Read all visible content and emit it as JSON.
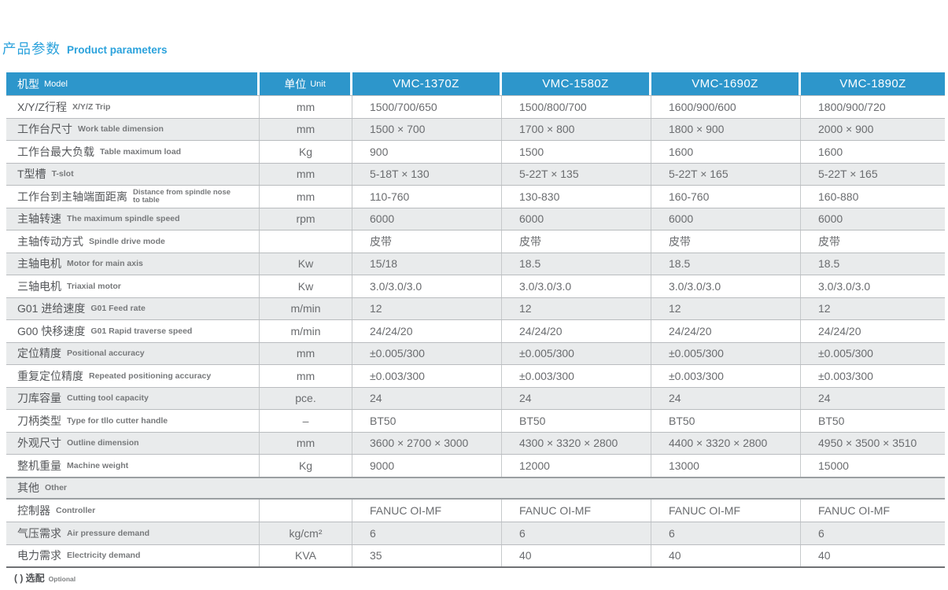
{
  "page": {
    "title_zh": "产品参数",
    "title_en": "Product parameters",
    "footnote_zh": "( ) 选配",
    "footnote_en": "Optional"
  },
  "colors": {
    "header_bg": "#2D96CB",
    "title_blue": "#2BA2DC",
    "alt_row_bg": "#E9EBEC",
    "body_text": "#6A6C6F",
    "label_text": "#55575A",
    "table_bottom_border": "#6F7174"
  },
  "table": {
    "columns": [
      {
        "zh": "机型",
        "en": "Model"
      },
      {
        "zh": "单位",
        "en": "Unit"
      },
      {
        "label": "VMC-1370Z"
      },
      {
        "label": "VMC-1580Z"
      },
      {
        "label": "VMC-1690Z"
      },
      {
        "label": "VMC-1890Z"
      }
    ],
    "rows": [
      {
        "zh": "X/Y/Z行程",
        "en": "X/Y/Z Trip",
        "unit": "mm",
        "values": [
          "1500/700/650",
          "1500/800/700",
          "1600/900/600",
          "1800/900/720"
        ]
      },
      {
        "zh": "工作台尺寸",
        "en": "Work table dimension",
        "unit": "mm",
        "values": [
          "1500 × 700",
          "1700 × 800",
          "1800 × 900",
          "2000 × 900"
        ]
      },
      {
        "zh": "工作台最大负载",
        "en": "Table maximum load",
        "unit": "Kg",
        "values": [
          "900",
          "1500",
          "1600",
          "1600"
        ]
      },
      {
        "zh": "T型槽",
        "en": "T-slot",
        "unit": "mm",
        "values": [
          "5-18T × 130",
          "5-22T × 135",
          "5-22T × 165",
          "5-22T × 165"
        ]
      },
      {
        "zh": "工作台到主轴端面距离",
        "en": "Distance from spindle nose to table",
        "en_wrap": true,
        "unit": "mm",
        "values": [
          "110-760",
          "130-830",
          "160-760",
          "160-880"
        ]
      },
      {
        "zh": "主轴转速",
        "en": "The maximum spindle speed",
        "unit": "rpm",
        "values": [
          "6000",
          "6000",
          "6000",
          "6000"
        ]
      },
      {
        "zh": "主轴传动方式",
        "en": "Spindle drive mode",
        "unit": "",
        "values": [
          "皮带",
          "皮带",
          "皮带",
          "皮带"
        ]
      },
      {
        "zh": "主轴电机",
        "en": "Motor for main axis",
        "unit": "Kw",
        "values": [
          "15/18",
          "18.5",
          "18.5",
          "18.5"
        ]
      },
      {
        "zh": "三轴电机",
        "en": "Triaxial motor",
        "unit": "Kw",
        "values": [
          "3.0/3.0/3.0",
          "3.0/3.0/3.0",
          "3.0/3.0/3.0",
          "3.0/3.0/3.0"
        ]
      },
      {
        "zh": "G01 进给速度",
        "en": "G01 Feed rate",
        "unit": "m/min",
        "values": [
          "12",
          "12",
          "12",
          "12"
        ]
      },
      {
        "zh": "G00 快移速度",
        "en": "G01 Rapid traverse speed",
        "unit": "m/min",
        "values": [
          "24/24/20",
          "24/24/20",
          "24/24/20",
          "24/24/20"
        ]
      },
      {
        "zh": "定位精度",
        "en": "Positional accuracy",
        "unit": "mm",
        "values": [
          "±0.005/300",
          "±0.005/300",
          "±0.005/300",
          "±0.005/300"
        ]
      },
      {
        "zh": "重复定位精度",
        "en": "Repeated positioning accuracy",
        "unit": "mm",
        "values": [
          "±0.003/300",
          "±0.003/300",
          "±0.003/300",
          "±0.003/300"
        ]
      },
      {
        "zh": "刀库容量",
        "en": "Cutting tool capacity",
        "unit": "pce.",
        "values": [
          "24",
          "24",
          "24",
          "24"
        ]
      },
      {
        "zh": "刀柄类型",
        "en": "Type for tllo cutter handle",
        "unit": "–",
        "values": [
          "BT50",
          "BT50",
          "BT50",
          "BT50"
        ]
      },
      {
        "zh": "外观尺寸",
        "en": "Outline dimension",
        "unit": "mm",
        "values": [
          "3600 × 2700 × 3000",
          "4300 × 3320 × 2800",
          "4400 × 3320 × 2800",
          "4950 × 3500 × 3510"
        ]
      },
      {
        "zh": "整机重量",
        "en": "Machine weight",
        "unit": "Kg",
        "values": [
          "9000",
          "12000",
          "13000",
          "15000"
        ]
      },
      {
        "zh": "其他",
        "en": "Other",
        "span": true
      },
      {
        "zh": "控制器",
        "en": "Controller",
        "unit": "",
        "values": [
          "FANUC OI-MF",
          "FANUC OI-MF",
          "FANUC OI-MF",
          "FANUC OI-MF"
        ]
      },
      {
        "zh": "气压需求",
        "en": "Air pressure demand",
        "unit": "kg/cm²",
        "values": [
          "6",
          "6",
          "6",
          "6"
        ]
      },
      {
        "zh": "电力需求",
        "en": "Electricity demand",
        "unit": "KVA",
        "values": [
          "35",
          "40",
          "40",
          "40"
        ]
      }
    ]
  }
}
